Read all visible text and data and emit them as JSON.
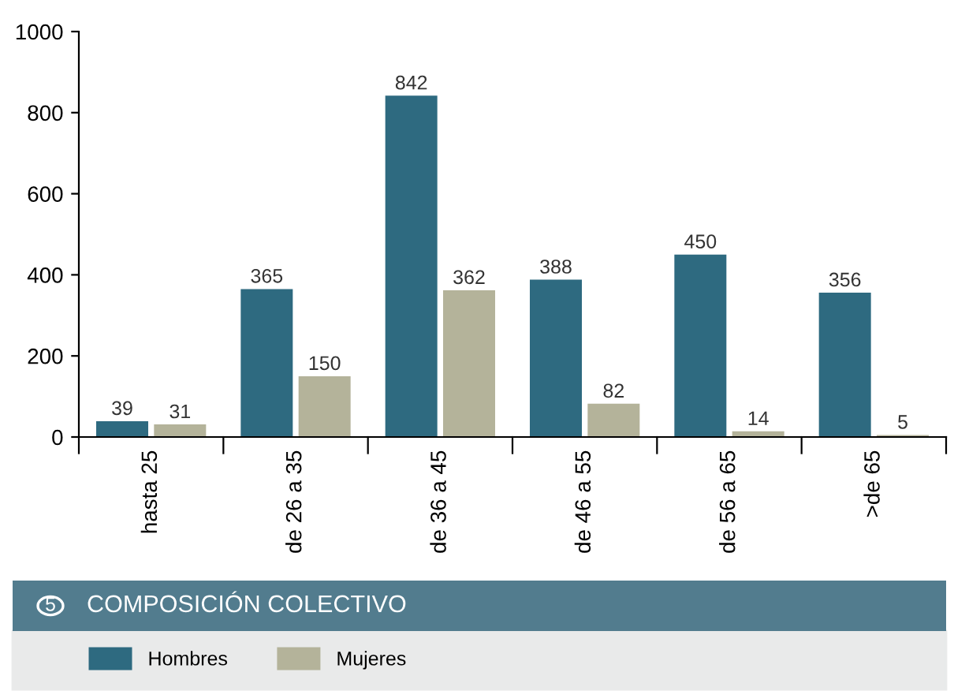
{
  "chart_data": {
    "type": "bar",
    "title": "COMPOSICIÓN COLECTIVO",
    "annotations": [
      "5"
    ],
    "categories": [
      "hasta 25",
      "de 26 a 35",
      "de 36 a 45",
      "de 46 a 55",
      "de 56 a 65",
      ">de 65"
    ],
    "series": [
      {
        "name": "Hombres",
        "color": "#2e6a80",
        "values": [
          39,
          365,
          842,
          388,
          450,
          356
        ]
      },
      {
        "name": "Mujeres",
        "color": "#b4b39a",
        "values": [
          31,
          150,
          362,
          82,
          14,
          5
        ]
      }
    ],
    "ylim": [
      0,
      1000
    ],
    "yticks": [
      0,
      200,
      400,
      600,
      800,
      1000
    ],
    "data_labels": true,
    "legend": "bottom",
    "grid": false
  }
}
